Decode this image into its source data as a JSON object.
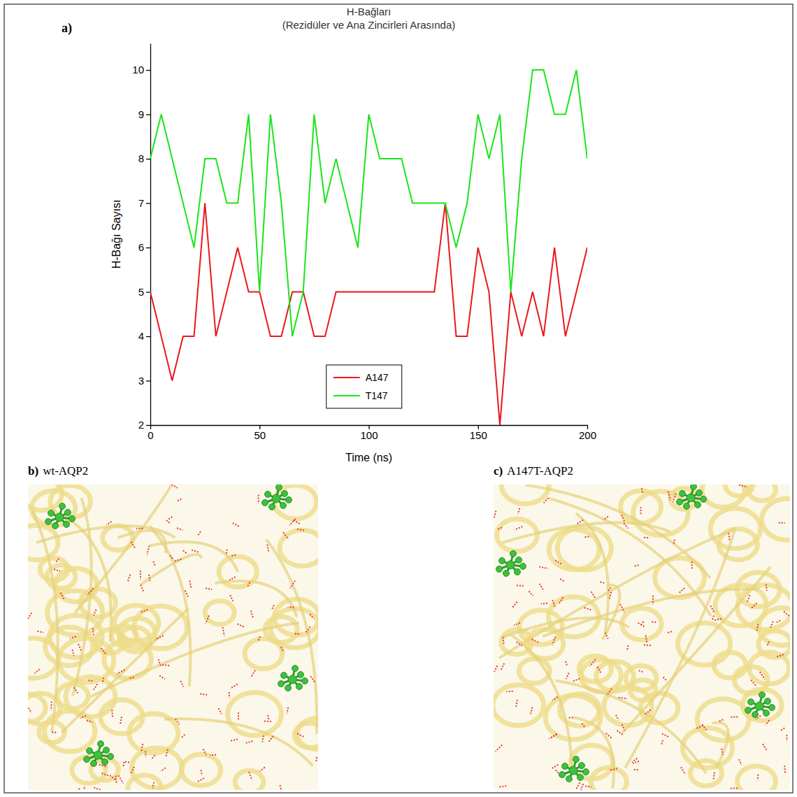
{
  "chart_data": {
    "type": "line",
    "title": "H-Bağları",
    "subtitle": "(Rezidüler ve Ana Zincirleri Arasında)",
    "x_label": "Time (ns)",
    "y_label": "H-Bağı Sayısı",
    "x": [
      0,
      5,
      10,
      15,
      20,
      25,
      30,
      35,
      40,
      45,
      50,
      55,
      60,
      65,
      70,
      75,
      80,
      85,
      90,
      95,
      100,
      105,
      110,
      115,
      120,
      125,
      130,
      135,
      140,
      145,
      150,
      155,
      160,
      165,
      170,
      175,
      180,
      185,
      190,
      195,
      200
    ],
    "series": [
      {
        "name": "A147",
        "color": "#e8191c",
        "values": [
          5,
          4,
          3,
          4,
          4,
          7,
          4,
          5,
          6,
          5,
          5,
          4,
          4,
          5,
          5,
          4,
          4,
          5,
          5,
          5,
          5,
          5,
          5,
          5,
          5,
          5,
          5,
          7,
          4,
          4,
          6,
          5,
          2,
          5,
          4,
          5,
          4,
          6,
          4,
          5,
          6
        ]
      },
      {
        "name": "T147",
        "color": "#19e619",
        "values": [
          8,
          9,
          8,
          7,
          6,
          8,
          8,
          7,
          7,
          9,
          5,
          9,
          7,
          4,
          5,
          9,
          7,
          8,
          7,
          6,
          9,
          8,
          8,
          8,
          7,
          7,
          7,
          7,
          6,
          7,
          9,
          8,
          9,
          5,
          8,
          10,
          10,
          9,
          9,
          10,
          8
        ]
      }
    ],
    "xlim": [
      0,
      200
    ],
    "xticks": [
      0,
      50,
      100,
      150,
      200
    ],
    "ylim": [
      2,
      10.6
    ],
    "yticks": [
      2,
      3,
      4,
      5,
      6,
      7,
      8,
      9,
      10
    ],
    "legend": "bottom",
    "grid": false
  },
  "panels": [
    {
      "letter": "a)"
    },
    {
      "letter": "b)",
      "caption": "wt-AQP2"
    },
    {
      "letter": "c)",
      "caption": "A147T-AQP2"
    }
  ]
}
